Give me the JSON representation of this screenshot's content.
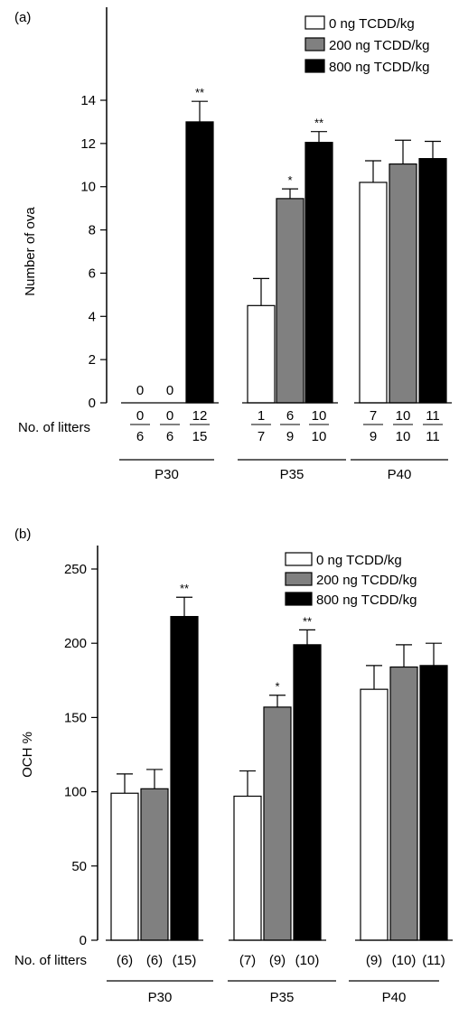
{
  "series_colors": {
    "0": "#ffffff",
    "200": "#808080",
    "800": "#000000"
  },
  "chart_data": [
    {
      "type": "bar",
      "panel_label": "(a)",
      "ylabel": "Number of ova",
      "ylim": [
        0,
        14
      ],
      "yticks": [
        "0",
        "2",
        "4",
        "6",
        "8",
        "10",
        "12",
        "14"
      ],
      "legend": [
        "0 ng TCDD/kg",
        "200 ng TCDD/kg",
        "800 ng TCDD/kg"
      ],
      "legend_placement": "top-right",
      "row_label": "No. of litters",
      "groups": [
        {
          "name": "P30",
          "bars": [
            {
              "value": 0,
              "err": 0,
              "stars": "",
              "value_label": "0",
              "litters_num": "0",
              "litters_den": "6"
            },
            {
              "value": 0,
              "err": 0,
              "stars": "",
              "value_label": "0",
              "litters_num": "0",
              "litters_den": "6"
            },
            {
              "value": 13.0,
              "err": 0.95,
              "stars": "**",
              "value_label": "",
              "litters_num": "12",
              "litters_den": "15"
            }
          ]
        },
        {
          "name": "P35",
          "bars": [
            {
              "value": 4.5,
              "err": 1.25,
              "stars": "",
              "value_label": "",
              "litters_num": "1",
              "litters_den": "7"
            },
            {
              "value": 9.45,
              "err": 0.45,
              "stars": "*",
              "value_label": "",
              "litters_num": "6",
              "litters_den": "9"
            },
            {
              "value": 12.05,
              "err": 0.5,
              "stars": "**",
              "value_label": "",
              "litters_num": "10",
              "litters_den": "10"
            }
          ]
        },
        {
          "name": "P40",
          "bars": [
            {
              "value": 10.2,
              "err": 1.0,
              "stars": "",
              "value_label": "",
              "litters_num": "7",
              "litters_den": "9"
            },
            {
              "value": 11.05,
              "err": 1.1,
              "stars": "",
              "value_label": "",
              "litters_num": "10",
              "litters_den": "10"
            },
            {
              "value": 11.3,
              "err": 0.8,
              "stars": "",
              "value_label": "",
              "litters_num": "11",
              "litters_den": "11"
            }
          ]
        }
      ]
    },
    {
      "type": "bar",
      "panel_label": "(b)",
      "ylabel": "OCH %",
      "ylim": [
        0,
        250
      ],
      "yticks": [
        "0",
        "50",
        "100",
        "150",
        "200",
        "250"
      ],
      "legend": [
        "0 ng TCDD/kg",
        "200 ng TCDD/kg",
        "800 ng TCDD/kg"
      ],
      "legend_placement": "top-right",
      "row_label": "No. of litters",
      "groups": [
        {
          "name": "P30",
          "bars": [
            {
              "value": 99,
              "err": 13,
              "stars": "",
              "litters": "(6)"
            },
            {
              "value": 102,
              "err": 13,
              "stars": "",
              "litters": "(6)"
            },
            {
              "value": 218,
              "err": 13,
              "stars": "**",
              "litters": "(15)"
            }
          ]
        },
        {
          "name": "P35",
          "bars": [
            {
              "value": 97,
              "err": 17,
              "stars": "",
              "litters": "(7)"
            },
            {
              "value": 157,
              "err": 8,
              "stars": "*",
              "litters": "(9)"
            },
            {
              "value": 199,
              "err": 10,
              "stars": "**",
              "litters": "(10)"
            }
          ]
        },
        {
          "name": "P40",
          "bars": [
            {
              "value": 169,
              "err": 16,
              "stars": "",
              "litters": "(9)"
            },
            {
              "value": 184,
              "err": 15,
              "stars": "",
              "litters": "(10)"
            },
            {
              "value": 185,
              "err": 15,
              "stars": "",
              "litters": "(11)"
            }
          ]
        }
      ]
    }
  ]
}
